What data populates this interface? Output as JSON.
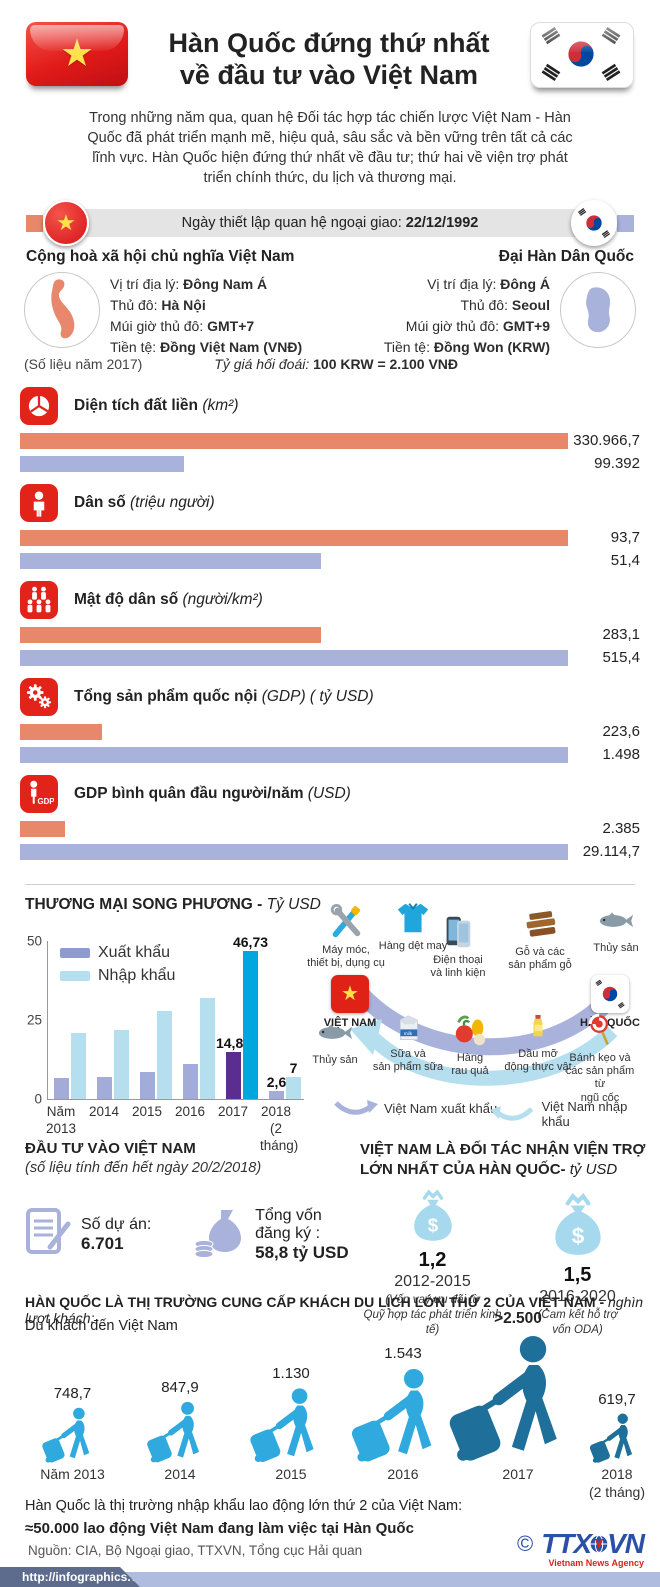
{
  "header": {
    "title_line1": "Hàn Quốc đứng thứ nhất",
    "title_line2": "về đầu tư vào Việt Nam"
  },
  "intro": {
    "text": "Trong những năm qua, quan hệ Đối tác hợp tác chiến lược Việt Nam - Hàn Quốc đã phát triển mạnh mẽ, hiệu quả, sâu sắc và bền vững trên tất cả các lĩnh vực. Hàn Quốc hiện đứng thứ nhất về đầu tư; thứ hai về viện trợ phát triển chính thức, du lịch và thương mại."
  },
  "relations": {
    "label": "Ngày thiết lập quan hệ ngoại giao: ",
    "date": "22/12/1992"
  },
  "vietnam": {
    "name": "Cộng hoà xã hội chủ nghĩa Việt Nam",
    "details": [
      {
        "label": "Vị trí địa lý: ",
        "value": "Đông Nam Á"
      },
      {
        "label": "Thủ đô: ",
        "value": "Hà Nội"
      },
      {
        "label": "Múi giờ thủ đô: ",
        "value": "GMT+7"
      },
      {
        "label": "Tiền tệ:  ",
        "value": "Đồng Việt Nam (VNĐ)"
      }
    ]
  },
  "korea": {
    "name": "Đại Hàn Dân Quốc",
    "details": [
      {
        "label": "Vị trí địa lý: ",
        "value": "Đông Á"
      },
      {
        "label": "Thủ đô: ",
        "value": "Seoul"
      },
      {
        "label": "Múi giờ thủ đô: ",
        "value": "GMT+9"
      },
      {
        "label": "Tiền tệ: ",
        "value": "Đồng Won (KRW)"
      }
    ]
  },
  "notes": {
    "data_year": "(Số liệu năm 2017)",
    "exchange_label": "Tỷ giá hối đoái: ",
    "exchange_value": "100 KRW = 2.100 VNĐ"
  },
  "stats": [
    {
      "icon": "pie-chart-icon",
      "label": "Diện tích đất liền ",
      "unit": "(km²)",
      "vn_label": "330.966,7",
      "kr_label": "99.392",
      "vn_value": 330966.7,
      "kr_value": 99392
    },
    {
      "icon": "person-icon",
      "label": "Dân số ",
      "unit": "(triệu người)",
      "vn_label": "93,7",
      "kr_label": "51,4",
      "vn_value": 93.7,
      "kr_value": 51.4
    },
    {
      "icon": "people-icon",
      "label": "Mật độ dân số ",
      "unit": "(người/km²)",
      "vn_label": "283,1",
      "kr_label": "515,4",
      "vn_value": 283.1,
      "kr_value": 515.4
    },
    {
      "icon": "gears-icon",
      "label": "Tổng sản phẩm quốc nội ",
      "unit": "(GDP) ( tỷ USD)",
      "vn_label": "223,6",
      "kr_label": "1.498",
      "vn_value": 223.6,
      "kr_value": 1498
    },
    {
      "icon": "gdp-person-icon",
      "label": "GDP bình quân đầu người/năm ",
      "unit": "(USD)",
      "vn_label": "2.385",
      "kr_label": "29.114,7",
      "vn_value": 2385,
      "kr_value": 29114.7
    }
  ],
  "trade": {
    "title": "THƯƠNG MẠI SONG PHƯƠNG - ",
    "unit": "Tỷ USD",
    "legend": [
      "Xuất khẩu",
      "Nhập khẩu"
    ],
    "yticks": [
      "50",
      "25",
      "0"
    ],
    "categories": [
      "Năm\n2013",
      "2014",
      "2015",
      "2016",
      "2017",
      "2018\n(2 tháng)"
    ],
    "export_values": [
      6.5,
      6.9,
      8.7,
      11.1,
      14.82,
      2.6
    ],
    "import_values": [
      20.8,
      21.8,
      27.8,
      32.1,
      46.73,
      7
    ],
    "export_labels": [
      "",
      "",
      "",
      "",
      "14,82",
      "2,6"
    ],
    "import_labels": [
      "",
      "",
      "",
      "",
      "46,73",
      "7"
    ],
    "highlight_index": 4
  },
  "products": {
    "vietnam_label": "VIỆT NAM",
    "korea_label": "HÀN QUỐC",
    "exports": [
      {
        "icon": "tools-icon",
        "label": "Máy móc,\nthiết bị, dụng cụ"
      },
      {
        "icon": "shirt-icon",
        "label": "Hàng dệt may"
      },
      {
        "icon": "phone-icon",
        "label": "Điện thoại\nvà linh kiện"
      },
      {
        "icon": "wood-icon",
        "label": "Gỗ và các\nsản phẩm gỗ"
      },
      {
        "icon": "fish-icon",
        "label": "Thủy sản"
      }
    ],
    "imports": [
      {
        "icon": "fish-icon",
        "label": "Thủy sản"
      },
      {
        "icon": "milk-icon",
        "label": "Sữa và\nsản phẩm sữa"
      },
      {
        "icon": "vegetables-icon",
        "label": "Hàng\nrau quả"
      },
      {
        "icon": "oil-icon",
        "label": "Dầu mỡ\nđộng thực vật"
      },
      {
        "icon": "candy-icon",
        "label": "Bánh kẹo và\ncác sản phẩm từ\nngũ cốc"
      }
    ],
    "flow_legend_export": "Việt Nam xuất khẩu",
    "flow_legend_import": "Việt Nam nhập khẩu"
  },
  "investment": {
    "title": "ĐẦU TƯ VÀO VIỆT NAM",
    "subtitle": "(số liệu tính đến hết ngày 20/2/2018)",
    "projects_label": "Số dự án: ",
    "projects_value": "6.701",
    "capital_label": "Tổng vốn đăng ký :",
    "capital_value": "58,8 tỷ USD"
  },
  "aid": {
    "title_line1": "VIỆT NAM LÀ ĐỐI TÁC NHẬN VIỆN TRỢ",
    "title_line2": "LỚN NHẤT CỦA HÀN QUỐC- ",
    "title_unit": "tỷ USD",
    "items": [
      {
        "value": "1,2",
        "period": "2012-2015",
        "note": "(Vốn vay ưu đãi từ\nQuỹ hợp tác phát triển kinh tế)"
      },
      {
        "value": "1,5",
        "period": "2016-2020",
        "note": "(Cam kết hỗ trợ\nvốn ODA)"
      }
    ]
  },
  "tourism": {
    "title": "HÀN QUỐC LÀ THỊ TRƯỜNG CUNG CẤP KHÁCH DU LỊCH LỚN THỨ 2 CỦA VIỆT NAM - ",
    "title_unit": "nghìn lượt khách:",
    "subtitle": "Du khách đến Việt Nam",
    "items": [
      {
        "year": "Năm 2013",
        "value_label": "748,7",
        "value": 748.7,
        "highlight": false
      },
      {
        "year": "2014",
        "value_label": "847,9",
        "value": 847.9,
        "highlight": false
      },
      {
        "year": "2015",
        "value_label": "1.130",
        "value": 1130,
        "highlight": false
      },
      {
        "year": "2016",
        "value_label": "1.543",
        "value": 1543,
        "highlight": false
      },
      {
        "year": "2017",
        "value_label": ">2.500",
        "value": 2500,
        "highlight": true
      },
      {
        "year": "2018\n(2 tháng)",
        "value_label": "619,7",
        "value": 619.7,
        "highlight": true
      }
    ]
  },
  "labor": {
    "line1": "Hàn Quốc là thị trường nhập khẩu lao động lớn thứ 2 của Việt Nam:",
    "line2": "≈50.000 lao động Việt Nam đang làm việc tại Hàn Quốc"
  },
  "source": "Nguồn: CIA, Bộ Ngoại giao, TTXVN, Tổng cục Hải quan",
  "footer": {
    "url": "http://infographics.vn/",
    "copyright": "©",
    "logo_text_left": "TTX",
    "logo_text_right": "VN",
    "logo_sub": "Vietnam News Agency"
  },
  "colors": {
    "vietnam_bar": "#E8886A",
    "korea_bar": "#A9B2DB",
    "icon_red": "#E2231A",
    "export_bar": "#A3ACD9",
    "import_bar": "#B5DFEF",
    "export_highlight": "#5B2D8E",
    "import_highlight": "#00A7DE",
    "tourist_blue": "#30A9DF",
    "tourist_dark": "#1E6F99",
    "aid_bag": "#A6D9ED",
    "strip": "#AFBCDF"
  },
  "chart_data": [
    {
      "type": "bar",
      "title": "",
      "categories": [
        "Diện tích đất liền (km²)",
        "Dân số (triệu người)",
        "Mật độ dân số (người/km²)",
        "Tổng sản phẩm quốc nội GDP (tỷ USD)",
        "GDP bình quân đầu người/năm (USD)"
      ],
      "series": [
        {
          "name": "Việt Nam",
          "values": [
            330966.7,
            93.7,
            283.1,
            223.6,
            2385
          ]
        },
        {
          "name": "Hàn Quốc",
          "values": [
            99392,
            51.4,
            515.4,
            1498,
            29114.7
          ]
        }
      ],
      "legend_position": "none",
      "orientation": "horizontal"
    },
    {
      "type": "bar",
      "title": "THƯƠNG MẠI SONG PHƯƠNG - Tỷ USD",
      "categories": [
        "Năm 2013",
        "2014",
        "2015",
        "2016",
        "2017",
        "2018 (2 tháng)"
      ],
      "series": [
        {
          "name": "Xuất khẩu",
          "values": [
            6.5,
            6.9,
            8.7,
            11.1,
            14.82,
            2.6
          ]
        },
        {
          "name": "Nhập khẩu",
          "values": [
            20.8,
            21.8,
            27.8,
            32.1,
            46.73,
            7
          ]
        }
      ],
      "ylim": [
        0,
        50
      ],
      "yticks": [
        0,
        25,
        50
      ],
      "legend_position": "top-left",
      "grid": false
    },
    {
      "type": "bar",
      "title": "VIỆT NAM LÀ ĐỐI TÁC NHẬN VIỆN TRỢ LỚN NHẤT CỦA HÀN QUỐC - tỷ USD",
      "categories": [
        "2012-2015",
        "2016-2020"
      ],
      "values": [
        1.2,
        1.5
      ]
    },
    {
      "type": "bar",
      "title": "Du khách đến Việt Nam (nghìn lượt khách)",
      "categories": [
        "Năm 2013",
        "2014",
        "2015",
        "2016",
        "2017",
        "2018 (2 tháng)"
      ],
      "values": [
        748.7,
        847.9,
        1130,
        1543,
        2500,
        619.7
      ],
      "data_labels": [
        "748,7",
        "847,9",
        "1.130",
        "1.543",
        ">2.500",
        "619,7"
      ]
    }
  ]
}
